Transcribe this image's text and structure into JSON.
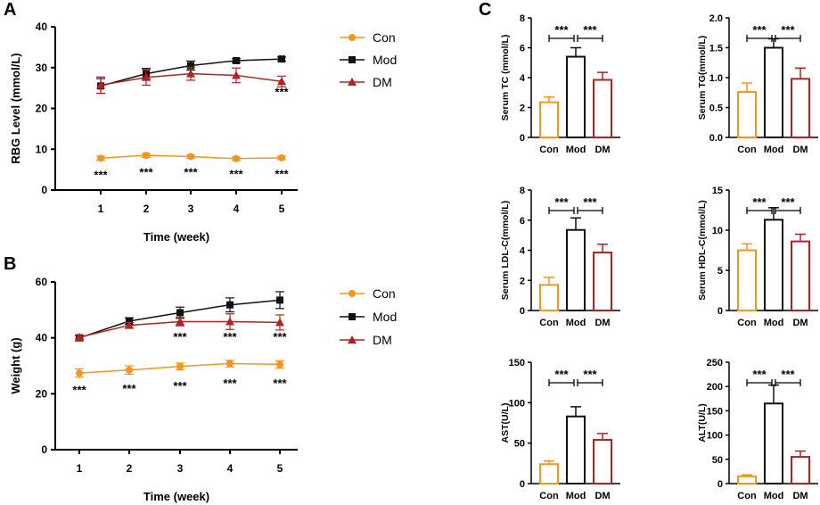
{
  "panels": {
    "A": "A",
    "B": "B",
    "C": "C"
  },
  "colors": {
    "Con": "#f7941d",
    "Mod": "#111111",
    "DM": "#b22222"
  },
  "chart_data": [
    {
      "id": "A",
      "type": "line",
      "title": "",
      "xlabel": "Time (week)",
      "ylabel": "RBG Level (mmol/L)",
      "x": [
        1,
        2,
        3,
        4,
        5
      ],
      "xticks": [
        "1",
        "2",
        "3",
        "4",
        "5"
      ],
      "ylim": [
        0,
        40
      ],
      "yticks": [
        "0",
        "10",
        "20",
        "30",
        "40"
      ],
      "series": [
        {
          "name": "Con",
          "marker": "circle",
          "values": [
            7.8,
            8.5,
            8.2,
            7.7,
            7.9
          ],
          "errors": [
            0.5,
            0.5,
            0.4,
            0.4,
            0.4
          ]
        },
        {
          "name": "Mod",
          "marker": "square",
          "values": [
            25.5,
            28.5,
            30.5,
            31.7,
            32.1
          ],
          "errors": [
            1.8,
            1.3,
            1.1,
            0.5,
            0.5
          ]
        },
        {
          "name": "DM",
          "marker": "triangle",
          "values": [
            25.7,
            27.6,
            28.5,
            28.1,
            26.6
          ],
          "errors": [
            2.0,
            1.9,
            1.6,
            1.8,
            1.3
          ]
        }
      ],
      "annotations": [
        {
          "x": 5,
          "y": 24.2,
          "text": "***"
        },
        {
          "x": 1,
          "y": 3.8,
          "text": "***"
        },
        {
          "x": 2,
          "y": 4.5,
          "text": "***"
        },
        {
          "x": 3,
          "y": 4.5,
          "text": "***"
        },
        {
          "x": 4,
          "y": 4.0,
          "text": "***"
        },
        {
          "x": 5,
          "y": 4.0,
          "text": "***"
        }
      ],
      "legend": [
        "Con",
        "Mod",
        "DM"
      ]
    },
    {
      "id": "B",
      "type": "line",
      "title": "",
      "xlabel": "Time (week)",
      "ylabel": "Weight (g)",
      "x": [
        1,
        2,
        3,
        4,
        5
      ],
      "xticks": [
        "1",
        "2",
        "3",
        "4",
        "5"
      ],
      "ylim": [
        0,
        60
      ],
      "yticks": [
        "0",
        "20",
        "40",
        "60"
      ],
      "series": [
        {
          "name": "Con",
          "marker": "circle",
          "values": [
            27.4,
            28.5,
            29.8,
            30.8,
            30.5
          ],
          "errors": [
            1.5,
            1.5,
            1.2,
            1.2,
            1.3
          ]
        },
        {
          "name": "Mod",
          "marker": "square",
          "values": [
            40.0,
            46.0,
            49.0,
            51.8,
            53.5
          ],
          "errors": [
            1.0,
            1.2,
            2.0,
            2.5,
            3.0
          ]
        },
        {
          "name": "DM",
          "marker": "triangle",
          "values": [
            40.2,
            44.5,
            45.8,
            45.8,
            45.5
          ],
          "errors": [
            0.6,
            1.0,
            1.5,
            2.8,
            2.7
          ]
        }
      ],
      "annotations": [
        {
          "x": 3,
          "y": 40.5,
          "text": "***"
        },
        {
          "x": 4,
          "y": 40.5,
          "text": "***"
        },
        {
          "x": 5,
          "y": 40.5,
          "text": "***"
        },
        {
          "x": 1,
          "y": 21.5,
          "text": "***"
        },
        {
          "x": 2,
          "y": 22.0,
          "text": "***"
        },
        {
          "x": 3,
          "y": 23.0,
          "text": "***"
        },
        {
          "x": 4,
          "y": 24.0,
          "text": "***"
        },
        {
          "x": 5,
          "y": 24.0,
          "text": "***"
        }
      ],
      "legend": [
        "Con",
        "Mod",
        "DM"
      ]
    },
    {
      "id": "C1",
      "type": "bar",
      "ylabel": "Serum TC (mmol/L)",
      "categories": [
        "Con",
        "Mod",
        "DM"
      ],
      "values": [
        2.35,
        5.4,
        3.85
      ],
      "errors": [
        0.35,
        0.6,
        0.5
      ],
      "ylim": [
        0,
        8
      ],
      "yticks": [
        "0",
        "2",
        "4",
        "6",
        "8"
      ],
      "significance": [
        "***",
        "***"
      ]
    },
    {
      "id": "C2",
      "type": "bar",
      "ylabel": "Serum TG(mmol/L)",
      "categories": [
        "Con",
        "Mod",
        "DM"
      ],
      "values": [
        0.76,
        1.5,
        0.98
      ],
      "errors": [
        0.15,
        0.15,
        0.18
      ],
      "ylim": [
        0,
        2.0
      ],
      "yticks": [
        "0.0",
        "0.5",
        "1.0",
        "1.5",
        "2.0"
      ],
      "significance": [
        "***",
        "***"
      ]
    },
    {
      "id": "C3",
      "type": "bar",
      "ylabel": "Serum LDL-C(mmol/L)",
      "categories": [
        "Con",
        "Mod",
        "DM"
      ],
      "values": [
        1.7,
        5.35,
        3.85
      ],
      "errors": [
        0.5,
        0.8,
        0.55
      ],
      "ylim": [
        0,
        8
      ],
      "yticks": [
        "0",
        "2",
        "4",
        "6",
        "8"
      ],
      "significance": [
        "***",
        "***"
      ]
    },
    {
      "id": "C4",
      "type": "bar",
      "ylabel": "Serum HDL-C(mmol/L)",
      "categories": [
        "Con",
        "Mod",
        "DM"
      ],
      "values": [
        7.5,
        11.3,
        8.6
      ],
      "errors": [
        0.8,
        1.5,
        0.9
      ],
      "ylim": [
        0,
        15
      ],
      "yticks": [
        "0",
        "5",
        "10",
        "15"
      ],
      "significance": [
        "***",
        "***"
      ]
    },
    {
      "id": "C5",
      "type": "bar",
      "ylabel": "AST(U/L)",
      "categories": [
        "Con",
        "Mod",
        "DM"
      ],
      "values": [
        24,
        83,
        54
      ],
      "errors": [
        4,
        12,
        8
      ],
      "ylim": [
        0,
        150
      ],
      "yticks": [
        "0",
        "50",
        "100",
        "150"
      ],
      "significance": [
        "***",
        "***"
      ]
    },
    {
      "id": "C6",
      "type": "bar",
      "ylabel": "ALT(U/L)",
      "categories": [
        "Con",
        "Mod",
        "DM"
      ],
      "values": [
        15,
        165,
        55
      ],
      "errors": [
        3,
        38,
        12
      ],
      "ylim": [
        0,
        250
      ],
      "yticks": [
        "0",
        "50",
        "100",
        "150",
        "200",
        "250"
      ],
      "significance": [
        "***",
        "***"
      ]
    }
  ]
}
